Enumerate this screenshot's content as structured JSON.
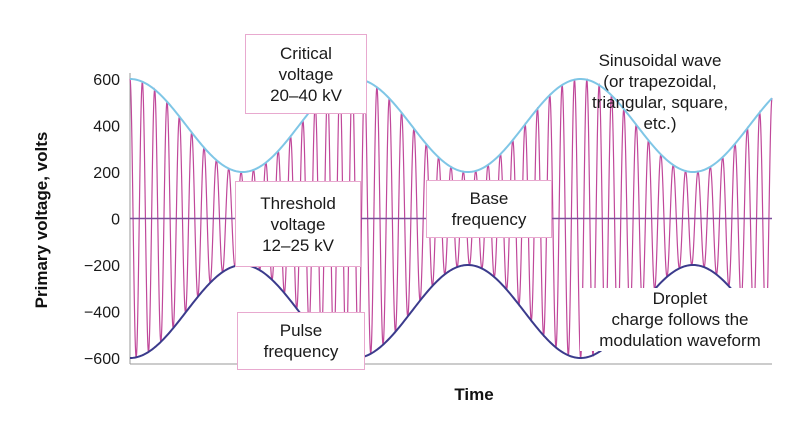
{
  "chart_data": {
    "type": "line",
    "title": "",
    "xlabel": "Time",
    "ylabel": "Primary voltage, volts",
    "ylim": [
      -600,
      600
    ],
    "yticks": [
      -600,
      -400,
      -200,
      0,
      200,
      400,
      600
    ],
    "xticks": [],
    "grid": false,
    "series": [
      {
        "type": "carrier",
        "color": "#c0489a",
        "cycles": 52,
        "envelope_center": 400,
        "envelope_amplitude": 200,
        "modulation_cycles": 2.85
      },
      {
        "type": "upper-envelope",
        "color": "#7fc6e6"
      },
      {
        "type": "lower-envelope",
        "color": "#3b3b8c"
      },
      {
        "type": "zero-line",
        "color": "#7a4f9a",
        "y": 0
      }
    ],
    "annotations": {
      "critical": [
        "Critical",
        "voltage",
        "20–40 kV"
      ],
      "threshold": [
        "Threshold",
        "voltage",
        "12–25 kV"
      ],
      "base": [
        "Base",
        "frequency"
      ],
      "pulse": [
        "Pulse",
        "frequency"
      ],
      "sinusoidal": [
        "Sinusoidal wave",
        "(or trapezoidal,",
        "triangular, square,",
        "etc.)"
      ],
      "droplet": [
        "Droplet",
        "charge follows the",
        "modulation waveform"
      ]
    }
  }
}
